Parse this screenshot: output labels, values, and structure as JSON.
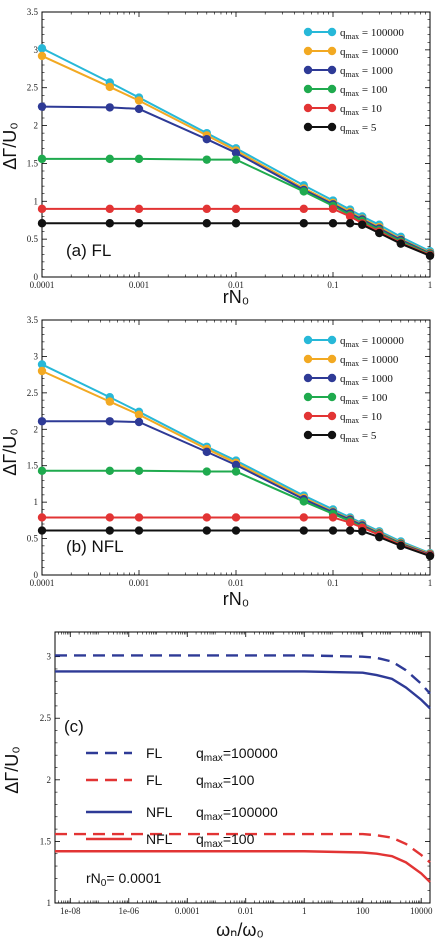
{
  "chart_data": [
    {
      "type": "line",
      "panel_label": "(a) FL",
      "xlabel": "rN₀",
      "ylabel": "ΔΓ/U₀",
      "xscale": "log",
      "xlim": [
        0.0001,
        1
      ],
      "ylim": [
        0,
        3.5
      ],
      "grid": false,
      "legend_position": "top-right",
      "x": [
        0.0001,
        0.0005,
        0.001,
        0.005,
        0.01,
        0.05,
        0.1,
        0.15,
        0.2,
        0.3,
        0.5,
        1.0
      ],
      "xticks": [
        "0.0001",
        "0.001",
        "0.01",
        "0.1",
        "1"
      ],
      "yticks": [
        "0",
        "0.5",
        "1",
        "1.5",
        "2",
        "2.5",
        "3",
        "3.5"
      ],
      "series": [
        {
          "name": "q_max = 100000",
          "color": "#27b8d8",
          "values": [
            3.02,
            2.57,
            2.37,
            1.9,
            1.7,
            1.21,
            1.01,
            0.89,
            0.8,
            0.69,
            0.53,
            0.34
          ]
        },
        {
          "name": "q_max = 10000",
          "color": "#f2a922",
          "values": [
            2.92,
            2.51,
            2.33,
            1.87,
            1.67,
            1.17,
            0.98,
            0.86,
            0.77,
            0.66,
            0.5,
            0.32
          ]
        },
        {
          "name": "q_max = 1000",
          "color": "#2e3a96",
          "values": [
            2.25,
            2.24,
            2.22,
            1.82,
            1.64,
            1.15,
            0.96,
            0.84,
            0.76,
            0.64,
            0.49,
            0.31
          ]
        },
        {
          "name": "q_max = 100",
          "color": "#1faa4e",
          "values": [
            1.56,
            1.56,
            1.56,
            1.55,
            1.55,
            1.13,
            0.94,
            0.82,
            0.74,
            0.62,
            0.47,
            0.3
          ]
        },
        {
          "name": "q_max = 10",
          "color": "#e23434",
          "values": [
            0.9,
            0.9,
            0.9,
            0.9,
            0.9,
            0.9,
            0.9,
            0.8,
            0.71,
            0.6,
            0.45,
            0.29
          ]
        },
        {
          "name": "q_max = 5",
          "color": "#111111",
          "values": [
            0.71,
            0.71,
            0.71,
            0.71,
            0.71,
            0.71,
            0.71,
            0.71,
            0.69,
            0.58,
            0.44,
            0.28
          ]
        }
      ]
    },
    {
      "type": "line",
      "panel_label": "(b) NFL",
      "xlabel": "rN₀",
      "ylabel": "ΔΓ/U₀",
      "xscale": "log",
      "xlim": [
        0.0001,
        1
      ],
      "ylim": [
        0,
        3.5
      ],
      "grid": false,
      "legend_position": "top-right",
      "x": [
        0.0001,
        0.0005,
        0.001,
        0.005,
        0.01,
        0.05,
        0.1,
        0.15,
        0.2,
        0.3,
        0.5,
        1.0
      ],
      "xticks": [
        "0.0001",
        "0.001",
        "0.01",
        "0.1",
        "1"
      ],
      "yticks": [
        "0",
        "0.5",
        "1",
        "1.5",
        "2",
        "2.5",
        "3",
        "3.5"
      ],
      "series": [
        {
          "name": "q_max = 100000",
          "color": "#27b8d8",
          "values": [
            2.89,
            2.44,
            2.24,
            1.76,
            1.57,
            1.09,
            0.9,
            0.79,
            0.71,
            0.6,
            0.46,
            0.3
          ]
        },
        {
          "name": "q_max = 10000",
          "color": "#f2a922",
          "values": [
            2.8,
            2.38,
            2.2,
            1.73,
            1.54,
            1.06,
            0.87,
            0.77,
            0.69,
            0.58,
            0.44,
            0.29
          ]
        },
        {
          "name": "q_max = 1000",
          "color": "#2e3a96",
          "values": [
            2.11,
            2.11,
            2.1,
            1.69,
            1.51,
            1.04,
            0.86,
            0.76,
            0.68,
            0.57,
            0.43,
            0.28
          ]
        },
        {
          "name": "q_max = 100",
          "color": "#1faa4e",
          "values": [
            1.43,
            1.43,
            1.43,
            1.42,
            1.42,
            1.01,
            0.84,
            0.74,
            0.66,
            0.56,
            0.42,
            0.27
          ]
        },
        {
          "name": "q_max = 10",
          "color": "#e23434",
          "values": [
            0.79,
            0.79,
            0.79,
            0.79,
            0.79,
            0.79,
            0.79,
            0.72,
            0.65,
            0.55,
            0.41,
            0.27
          ]
        },
        {
          "name": "q_max = 5",
          "color": "#111111",
          "values": [
            0.61,
            0.61,
            0.61,
            0.61,
            0.61,
            0.61,
            0.61,
            0.61,
            0.6,
            0.52,
            0.4,
            0.26
          ]
        }
      ]
    },
    {
      "type": "line",
      "panel_label": "(c)",
      "xlabel": "ωₙ/ω₀",
      "ylabel": "ΔΓ/U₀",
      "xscale": "log",
      "xlim": [
        3e-09,
        20000
      ],
      "ylim": [
        1,
        3.2
      ],
      "grid": false,
      "legend_position": "center-left",
      "annotation": "rN₀= 0.0001",
      "xticks": [
        "1e-08",
        "1e-06",
        "0.0001",
        "0.01",
        "1",
        "100",
        "10000"
      ],
      "yticks": [
        "1",
        "1.5",
        "2",
        "2.5",
        "3"
      ],
      "x": [
        3e-09,
        1,
        100,
        300,
        1000,
        3000,
        10000,
        20000
      ],
      "series": [
        {
          "name": "FL q_max=100000",
          "color": "#2e3a96",
          "dash": "dashed",
          "values": [
            3.01,
            3.01,
            3.0,
            2.99,
            2.96,
            2.89,
            2.78,
            2.7
          ]
        },
        {
          "name": "FL q_max=100",
          "color": "#e23434",
          "dash": "dashed",
          "values": [
            1.56,
            1.56,
            1.56,
            1.55,
            1.53,
            1.48,
            1.39,
            1.33
          ]
        },
        {
          "name": "NFL q_max=100000",
          "color": "#2e3a96",
          "dash": "solid",
          "values": [
            2.88,
            2.88,
            2.87,
            2.85,
            2.82,
            2.75,
            2.65,
            2.58
          ]
        },
        {
          "name": "NFL q_max=100",
          "color": "#e23434",
          "dash": "solid",
          "values": [
            1.42,
            1.42,
            1.41,
            1.4,
            1.38,
            1.33,
            1.24,
            1.17
          ]
        }
      ]
    }
  ]
}
